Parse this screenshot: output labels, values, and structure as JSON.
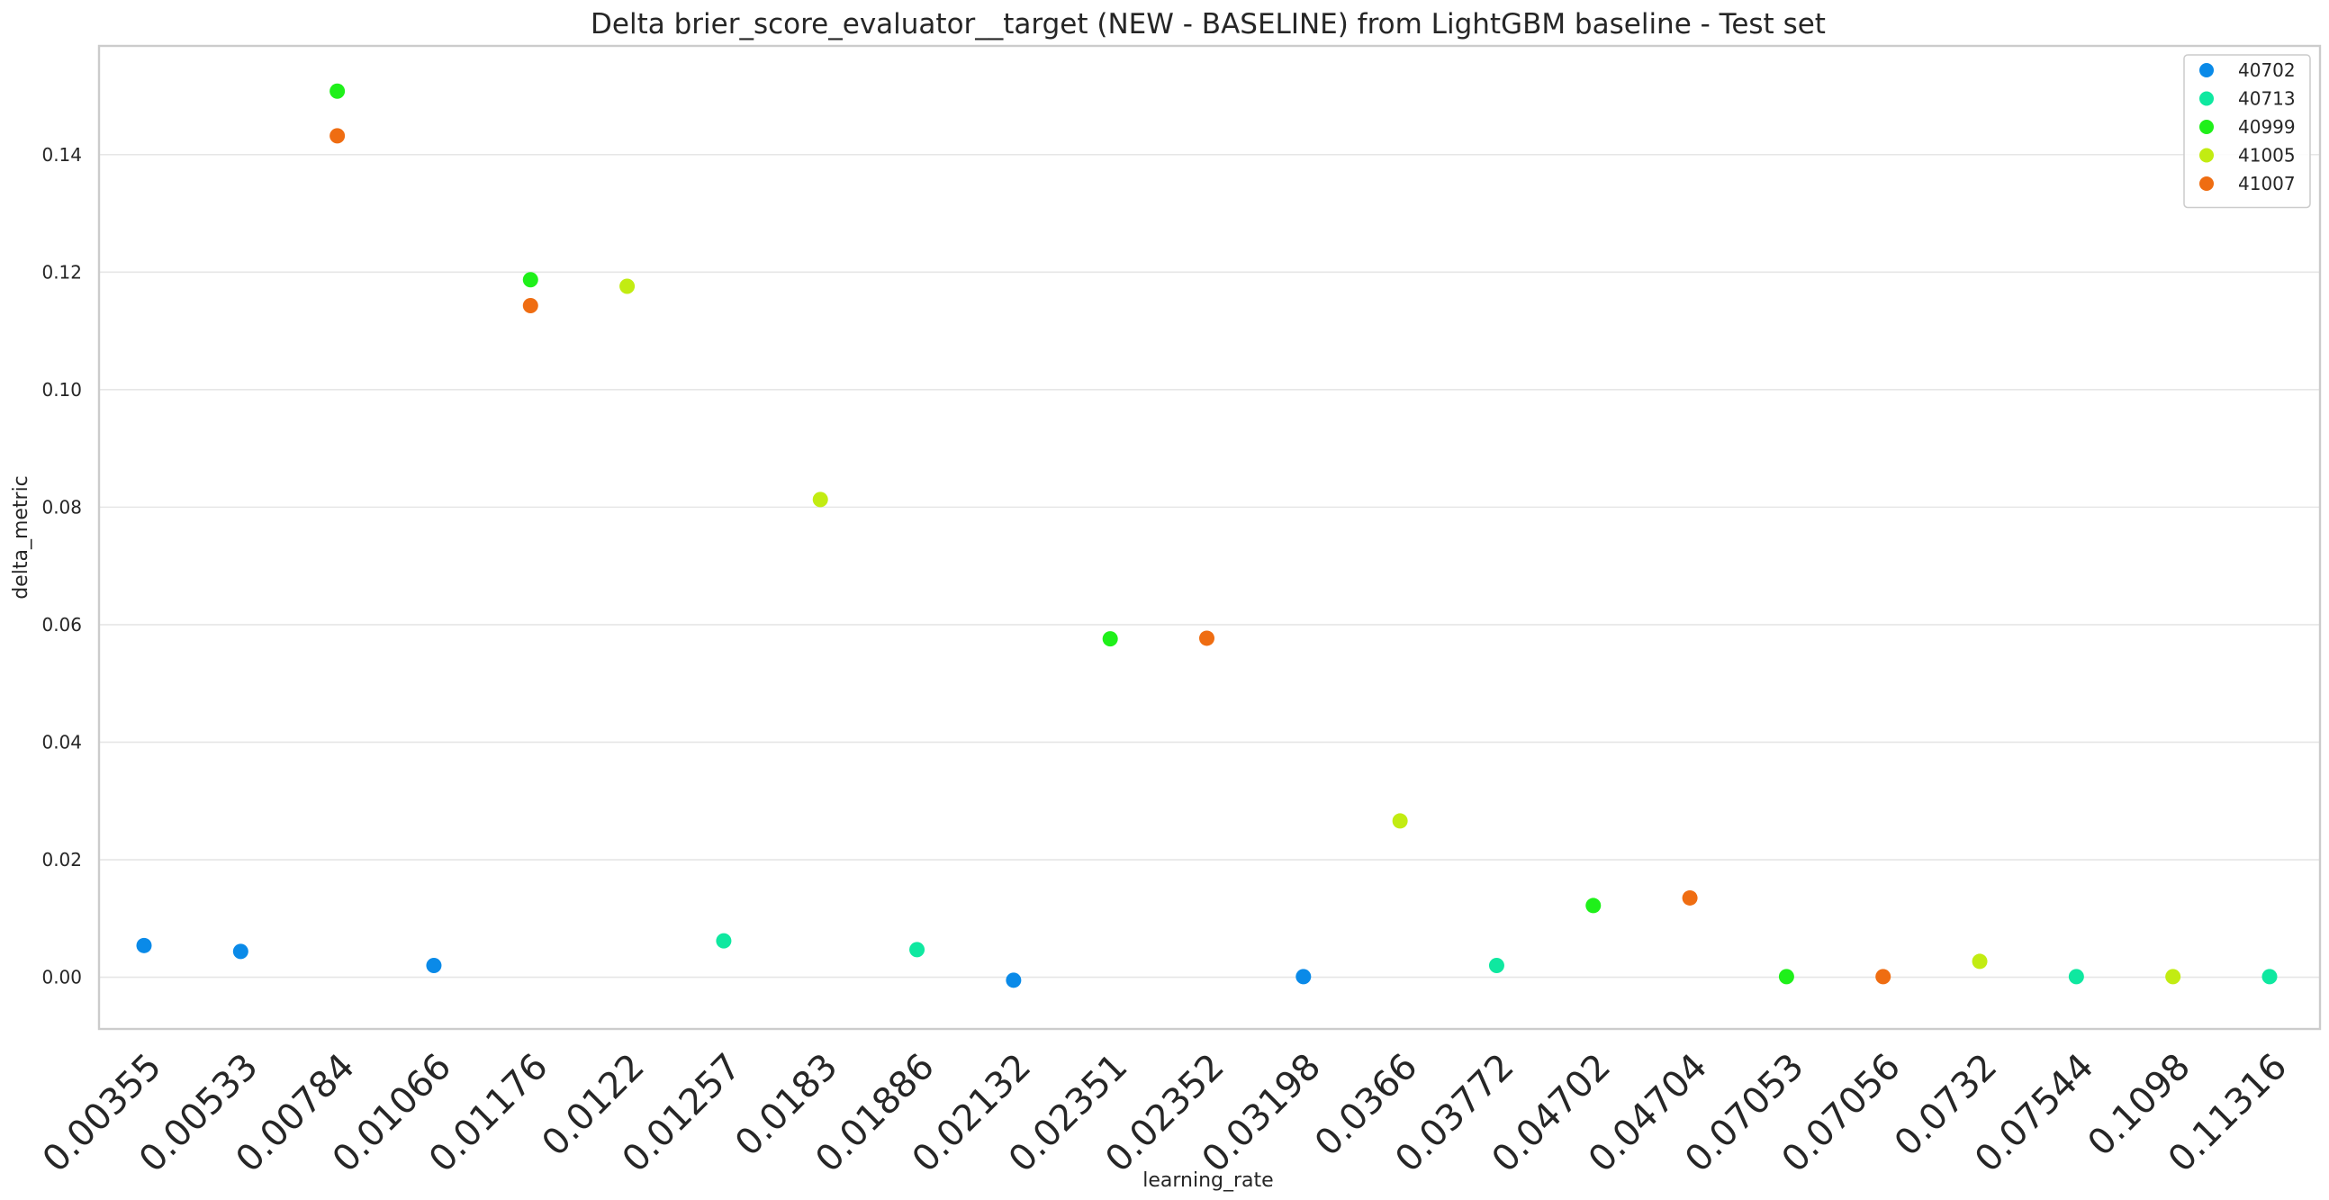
{
  "chart_data": {
    "type": "scatter",
    "title": "Delta brier_score_evaluator__target (NEW - BASELINE) from LightGBM baseline - Test set",
    "xlabel": "learning_rate",
    "ylabel": "delta_metric",
    "categories": [
      "0.00355",
      "0.00533",
      "0.00784",
      "0.01066",
      "0.01176",
      "0.0122",
      "0.01257",
      "0.0183",
      "0.01886",
      "0.02132",
      "0.02351",
      "0.02352",
      "0.03198",
      "0.0366",
      "0.03772",
      "0.04702",
      "0.04704",
      "0.07053",
      "0.07056",
      "0.0732",
      "0.07544",
      "0.1098",
      "0.11316"
    ],
    "yticks": [
      0.0,
      0.02,
      0.04,
      0.06,
      0.08,
      0.1,
      0.12,
      0.14
    ],
    "ytick_labels": [
      "0.00",
      "0.02",
      "0.04",
      "0.06",
      "0.08",
      "0.10",
      "0.12",
      "0.14"
    ],
    "ylim": [
      -0.0088,
      0.1585
    ],
    "grid": "horizontal",
    "legend_position": "top-right",
    "series": [
      {
        "name": "40702",
        "color": "#0a8ae8",
        "points": [
          {
            "x": "0.00355",
            "y": 0.0054
          },
          {
            "x": "0.00533",
            "y": 0.0044
          },
          {
            "x": "0.01066",
            "y": 0.002
          },
          {
            "x": "0.02132",
            "y": -0.0005
          },
          {
            "x": "0.03198",
            "y": 0.0001
          }
        ]
      },
      {
        "name": "40713",
        "color": "#0fe8a0",
        "points": [
          {
            "x": "0.01257",
            "y": 0.0062
          },
          {
            "x": "0.01886",
            "y": 0.0047
          },
          {
            "x": "0.03772",
            "y": 0.002
          },
          {
            "x": "0.07544",
            "y": 0.0001
          },
          {
            "x": "0.11316",
            "y": 0.0001
          }
        ]
      },
      {
        "name": "40999",
        "color": "#1ff01a",
        "points": [
          {
            "x": "0.00784",
            "y": 0.1508
          },
          {
            "x": "0.01176",
            "y": 0.1187
          },
          {
            "x": "0.02351",
            "y": 0.0576
          },
          {
            "x": "0.04702",
            "y": 0.0122
          },
          {
            "x": "0.07053",
            "y": 0.0001
          }
        ]
      },
      {
        "name": "41005",
        "color": "#c2ec12",
        "points": [
          {
            "x": "0.0122",
            "y": 0.1176
          },
          {
            "x": "0.0183",
            "y": 0.0813
          },
          {
            "x": "0.0366",
            "y": 0.0266
          },
          {
            "x": "0.0732",
            "y": 0.0027
          },
          {
            "x": "0.1098",
            "y": 0.0001
          }
        ]
      },
      {
        "name": "41007",
        "color": "#ef6d12",
        "points": [
          {
            "x": "0.00784",
            "y": 0.1432
          },
          {
            "x": "0.01176",
            "y": 0.1143
          },
          {
            "x": "0.02352",
            "y": 0.0577
          },
          {
            "x": "0.04704",
            "y": 0.0135
          },
          {
            "x": "0.07056",
            "y": 0.0001
          }
        ]
      }
    ]
  }
}
